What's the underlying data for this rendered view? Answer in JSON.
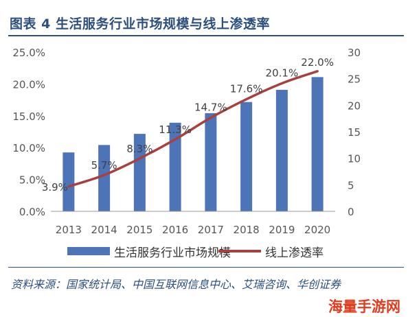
{
  "figure": {
    "title": "图表 4   生活服务行业市场规模与线上渗透率",
    "source": "资料来源：国家统计局、中国互联网信息中心、艾瑞咨询、华创证券"
  },
  "watermark": {
    "text": "海量手游网"
  },
  "legend": {
    "bar_label": "生活服务行业市场规模",
    "line_label": "线上渗透率"
  },
  "chart_data": {
    "type": "bar",
    "categories": [
      "2013",
      "2014",
      "2015",
      "2016",
      "2017",
      "2018",
      "2019",
      "2020"
    ],
    "series": [
      {
        "name": "生活服务行业市场规模",
        "type": "bar",
        "axis": "right",
        "values": [
          11.1,
          12.5,
          14.6,
          16.7,
          18.5,
          20.6,
          22.9,
          25.3
        ],
        "color": "#4e74b8"
      },
      {
        "name": "线上渗透率",
        "type": "line",
        "axis": "left",
        "values": [
          3.9,
          5.7,
          8.3,
          11.3,
          14.7,
          17.6,
          20.1,
          22.0
        ],
        "data_labels": [
          "3.9%",
          "5.7%",
          "8.3%",
          "11.3%",
          "14.7%",
          "17.6%",
          "20.1%",
          "22.0%"
        ],
        "color": "#a8403f"
      }
    ],
    "left_axis": {
      "ylim": [
        0,
        25
      ],
      "ticks": [
        0,
        5,
        10,
        15,
        20,
        25
      ],
      "tick_labels": [
        "0.0%",
        "5.0%",
        "10.0%",
        "15.0%",
        "20.0%",
        "25.0%"
      ]
    },
    "right_axis": {
      "ylim": [
        0,
        30
      ],
      "ticks": [
        0,
        5,
        10,
        15,
        20,
        25,
        30
      ],
      "tick_labels": [
        "0",
        "5",
        "10",
        "15",
        "20",
        "25",
        "30"
      ]
    },
    "grid": false,
    "legend_position": "bottom"
  }
}
